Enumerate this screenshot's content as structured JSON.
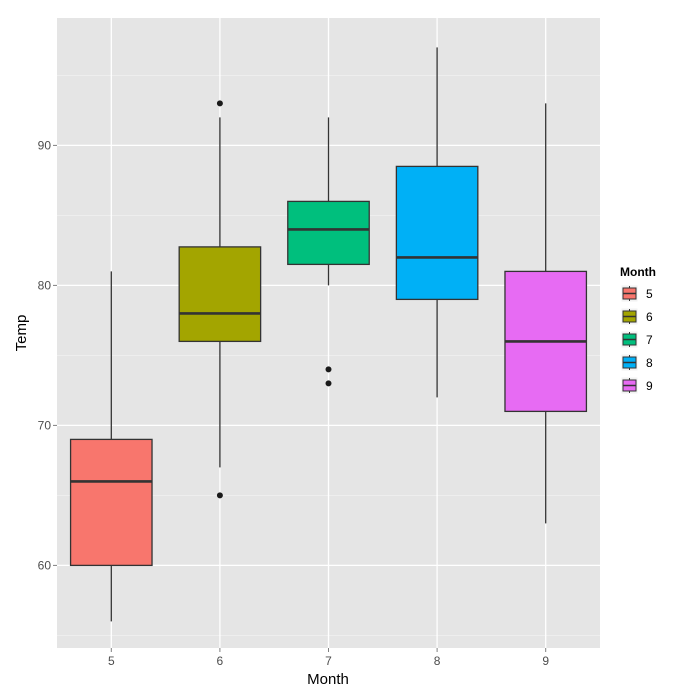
{
  "chart_data": {
    "type": "boxplot",
    "xlabel": "Month",
    "ylabel": "Temp",
    "categories": [
      "5",
      "6",
      "7",
      "8",
      "9"
    ],
    "ylim": [
      54.1,
      99.1
    ],
    "y_ticks": [
      60,
      70,
      80,
      90
    ],
    "grid": true,
    "legend": {
      "title": "Month",
      "position": "right",
      "entries": [
        "5",
        "6",
        "7",
        "8",
        "9"
      ]
    },
    "series": [
      {
        "category": "5",
        "color": "#F8766D",
        "whisker_low": 56,
        "q1": 60,
        "median": 66,
        "q3": 69,
        "whisker_high": 81,
        "outliers": []
      },
      {
        "category": "6",
        "color": "#A3A500",
        "whisker_low": 67,
        "q1": 76,
        "median": 78,
        "q3": 82.75,
        "whisker_high": 92,
        "outliers": [
          65,
          93
        ]
      },
      {
        "category": "7",
        "color": "#00BF7D",
        "whisker_low": 80,
        "q1": 81.5,
        "median": 84,
        "q3": 86,
        "whisker_high": 92,
        "outliers": [
          73,
          74
        ]
      },
      {
        "category": "8",
        "color": "#00B0F6",
        "whisker_low": 72,
        "q1": 79,
        "median": 82,
        "q3": 88.5,
        "whisker_high": 97,
        "outliers": []
      },
      {
        "category": "9",
        "color": "#E76BF3",
        "whisker_low": 63,
        "q1": 71,
        "median": 76,
        "q3": 81,
        "whisker_high": 93,
        "outliers": []
      }
    ]
  }
}
